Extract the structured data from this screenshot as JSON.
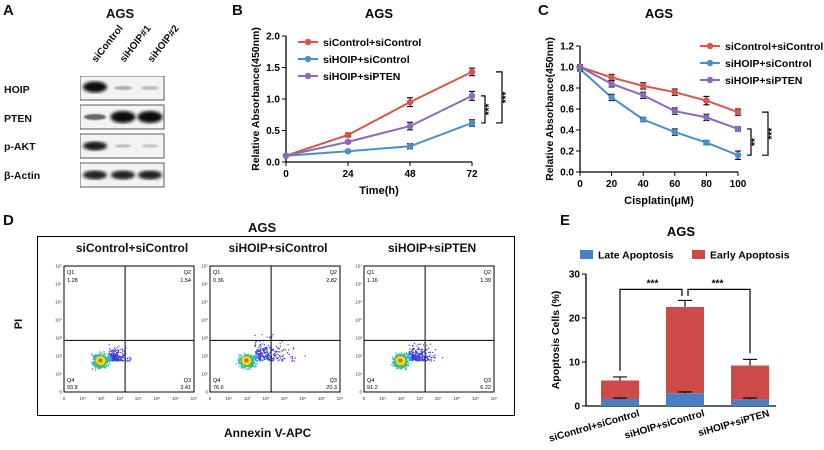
{
  "panelA": {
    "letter": "A",
    "title": "AGS",
    "lanes": [
      "siControl",
      "siHOIP#1",
      "siHOIP#2"
    ],
    "rows": [
      "HOIP",
      "PTEN",
      "p-AKT",
      "β-Actin"
    ]
  },
  "panelB": {
    "letter": "B",
    "chart_data": {
      "type": "line",
      "title": "AGS",
      "xlabel": "Time(h)",
      "ylabel": "Relative Absorbance(450nm)",
      "x": [
        0,
        24,
        48,
        72
      ],
      "xticks": [
        "0",
        "24",
        "48",
        "72"
      ],
      "yticks": [
        "0.0",
        "0.5",
        "1.0",
        "1.5",
        "2.0"
      ],
      "xlim": [
        0,
        72
      ],
      "ylim": [
        0,
        2.0
      ],
      "legend_position": "top-left",
      "series": [
        {
          "name": "siControl+siControl",
          "color": "#d9534f",
          "values": [
            0.1,
            0.43,
            0.95,
            1.43
          ],
          "errors": [
            0.01,
            0.03,
            0.07,
            0.06
          ]
        },
        {
          "name": "siHOIP+siControl",
          "color": "#4a90c8",
          "values": [
            0.1,
            0.17,
            0.25,
            0.62
          ],
          "errors": [
            0.01,
            0.02,
            0.04,
            0.05
          ]
        },
        {
          "name": "siHOIP+siPTEN",
          "color": "#8b6bb5",
          "values": [
            0.1,
            0.32,
            0.57,
            1.05
          ],
          "errors": [
            0.01,
            0.02,
            0.06,
            0.07
          ]
        }
      ],
      "annotations": [
        "***",
        "***"
      ]
    }
  },
  "panelC": {
    "letter": "C",
    "chart_data": {
      "type": "line",
      "title": "AGS",
      "xlabel": "Cisplatin(μM)",
      "ylabel": "Relative Absorbance(450nm)",
      "x": [
        0,
        20,
        40,
        60,
        80,
        100
      ],
      "xticks": [
        "0",
        "20",
        "40",
        "60",
        "80",
        "100"
      ],
      "yticks": [
        "0.0",
        "0.2",
        "0.4",
        "0.6",
        "0.8",
        "1.0",
        "1.2"
      ],
      "xlim": [
        0,
        100
      ],
      "ylim": [
        0,
        1.2
      ],
      "legend_position": "top-right",
      "series": [
        {
          "name": "siControl+siControl",
          "color": "#d9534f",
          "values": [
            1.0,
            0.9,
            0.82,
            0.76,
            0.68,
            0.57
          ],
          "errors": [
            0.02,
            0.03,
            0.03,
            0.03,
            0.04,
            0.03
          ]
        },
        {
          "name": "siHOIP+siControl",
          "color": "#4a90c8",
          "values": [
            0.98,
            0.71,
            0.5,
            0.38,
            0.28,
            0.16
          ],
          "errors": [
            0.02,
            0.03,
            0.02,
            0.03,
            0.02,
            0.04
          ]
        },
        {
          "name": "siHOIP+siPTEN",
          "color": "#8b6bb5",
          "values": [
            1.0,
            0.84,
            0.73,
            0.58,
            0.52,
            0.41
          ],
          "errors": [
            0.02,
            0.03,
            0.03,
            0.03,
            0.03,
            0.02
          ]
        }
      ],
      "annotations": [
        "**",
        "***"
      ]
    }
  },
  "panelD": {
    "letter": "D",
    "title": "AGS",
    "xlabel": "Annexin V-APC",
    "ylabel": "PI",
    "plots": [
      {
        "name": "siControl+siControl",
        "q1": "1.28",
        "q2": "1.54",
        "q3": "3.41",
        "q4": "93.8"
      },
      {
        "name": "siHOIP+siControl",
        "q1": "0.36",
        "q2": "2.82",
        "q3": "20.3",
        "q4": "76.6"
      },
      {
        "name": "siHOIP+siPTEN",
        "q1": "1.16",
        "q2": "1.39",
        "q3": "6.22",
        "q4": "91.2"
      }
    ],
    "quadrant_labels": [
      "Q1",
      "Q2",
      "Q3",
      "Q4"
    ],
    "axis_ticks": [
      "0",
      "10¹",
      "10²",
      "10³",
      "10⁴",
      "10⁵",
      "10⁶",
      "10⁷"
    ]
  },
  "panelE": {
    "letter": "E",
    "chart_data": {
      "type": "bar",
      "title": "AGS",
      "ylabel": "Apoptosis Cells (%)",
      "categories": [
        "siControl+siControl",
        "siHOIP+siControl",
        "siHOIP+siPTEN"
      ],
      "ylim": [
        0,
        30
      ],
      "yticks": [
        "0",
        "10",
        "20",
        "30"
      ],
      "legend_position": "top",
      "series": [
        {
          "name": "Late Apoptosis",
          "color": "#4a7fc1",
          "values": [
            1.6,
            2.9,
            1.5
          ]
        },
        {
          "name": "Early Apoptosis",
          "color": "#cc4a47",
          "values": [
            4.2,
            19.6,
            7.7
          ]
        }
      ],
      "errors_total": [
        0.8,
        1.5,
        1.4
      ],
      "errors_late": [
        0.2,
        0.3,
        0.3
      ],
      "annotations": [
        "***",
        "***"
      ]
    }
  }
}
